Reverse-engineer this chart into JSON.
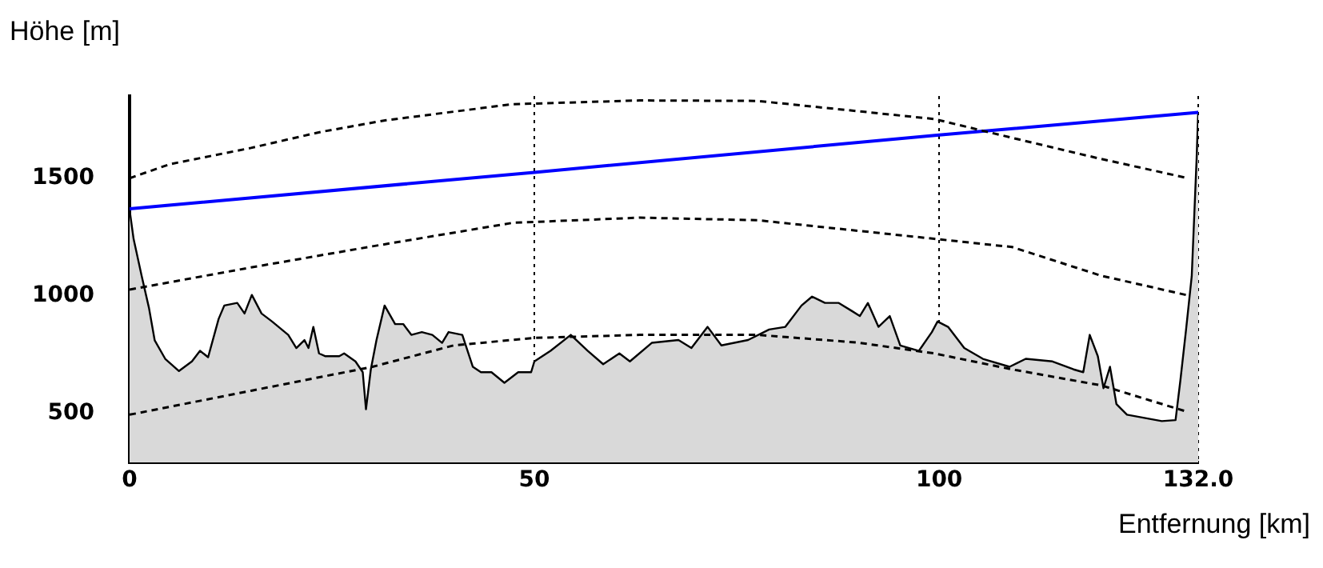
{
  "chart_data": {
    "type": "line",
    "ylabel": "Höhe [m]",
    "xlabel": "Entfernung [km]",
    "xlim": [
      0,
      132
    ],
    "xticks": [
      0,
      50,
      100,
      {
        "value": 132,
        "label": "132.0"
      }
    ],
    "ylim": [
      290,
      1850
    ],
    "yticks": [
      500,
      1000,
      1500
    ],
    "grid": "x",
    "legend": false,
    "series": [
      {
        "type": "area",
        "color": "#d9d9d9",
        "x": [
          0,
          0.5,
          1.5,
          2.4,
          3.1,
          4.4,
          6.1,
          7.7,
          8.7,
          9.7,
          11.0,
          11.7,
          13.3,
          14.2,
          15.1,
          16.3,
          17.6,
          19.6,
          20.6,
          21.6,
          22.1,
          22.7,
          23.4,
          24.2,
          25.9,
          26.5,
          27.9,
          28.8,
          29.2,
          29.8,
          30.5,
          31.5,
          32.8,
          33.8,
          34.8,
          36.1,
          37.4,
          38.6,
          39.4,
          41.1,
          42.4,
          43.4,
          44.7,
          46.3,
          48.0,
          49.6,
          50.0,
          52.0,
          54.5,
          56.6,
          58.5,
          60.5,
          61.8,
          64.5,
          67.8,
          69.4,
          71.4,
          73.1,
          76.4,
          79.0,
          81.0,
          83.0,
          84.3,
          85.9,
          87.6,
          89.2,
          90.2,
          91.2,
          92.5,
          93.9,
          95.2,
          97.5,
          99.1,
          99.8,
          101.1,
          103.1,
          105.4,
          108.7,
          110.7,
          114.0,
          116.6,
          117.8,
          118.6,
          119.6,
          120.3,
          121.1,
          121.9,
          123.2,
          127.5,
          129.2,
          129.8,
          130.5,
          131.2,
          131.8,
          132.0
        ],
        "values": [
          1366,
          1241,
          1083,
          947,
          810,
          731,
          679,
          720,
          765,
          738,
          901,
          958,
          969,
          924,
          1003,
          924,
          890,
          833,
          777,
          811,
          777,
          867,
          754,
          742,
          742,
          754,
          720,
          674,
          516,
          686,
          811,
          958,
          879,
          879,
          833,
          845,
          833,
          799,
          845,
          833,
          697,
          674,
          674,
          629,
          674,
          674,
          720,
          765,
          833,
          765,
          708,
          754,
          720,
          799,
          811,
          777,
          867,
          788,
          811,
          856,
          867,
          958,
          996,
          969,
          969,
          935,
          913,
          969,
          867,
          913,
          788,
          765,
          845,
          890,
          867,
          777,
          731,
          697,
          731,
          720,
          686,
          674,
          833,
          742,
          606,
          697,
          538,
          493,
          466,
          470,
          640,
          856,
          1083,
          1582,
          1786
        ]
      },
      {
        "color": "#000000",
        "line_style": "dashed",
        "x": [
          0,
          5,
          15,
          23.6,
          31.7,
          47.3,
          63,
          77.6,
          99.4,
          109,
          120,
          130.5
        ],
        "values": [
          1500,
          1560,
          1629,
          1697,
          1747,
          1815,
          1831,
          1829,
          1752,
          1672,
          1582,
          1502
        ]
      },
      {
        "color": "#000000",
        "line_style": "dashed",
        "x": [
          0,
          15,
          30,
          47.3,
          63,
          77.6,
          99.4,
          109,
          120,
          130.5
        ],
        "values": [
          1026,
          1120,
          1210,
          1310,
          1332,
          1321,
          1242,
          1207,
          1085,
          1003
        ]
      },
      {
        "color": "#000000",
        "line_style": "dashed",
        "x": [
          0,
          15,
          30,
          40,
          50,
          63,
          77.6,
          90,
          99.4,
          109,
          120,
          130.5
        ],
        "values": [
          493,
          595,
          697,
          788,
          820,
          833,
          833,
          800,
          754,
          686,
          618,
          507
        ]
      },
      {
        "color": "#0000ff",
        "line_style": "solid",
        "x": [
          0,
          50,
          100,
          132
        ],
        "values": [
          1370,
          1525,
          1684,
          1780
        ]
      }
    ]
  }
}
